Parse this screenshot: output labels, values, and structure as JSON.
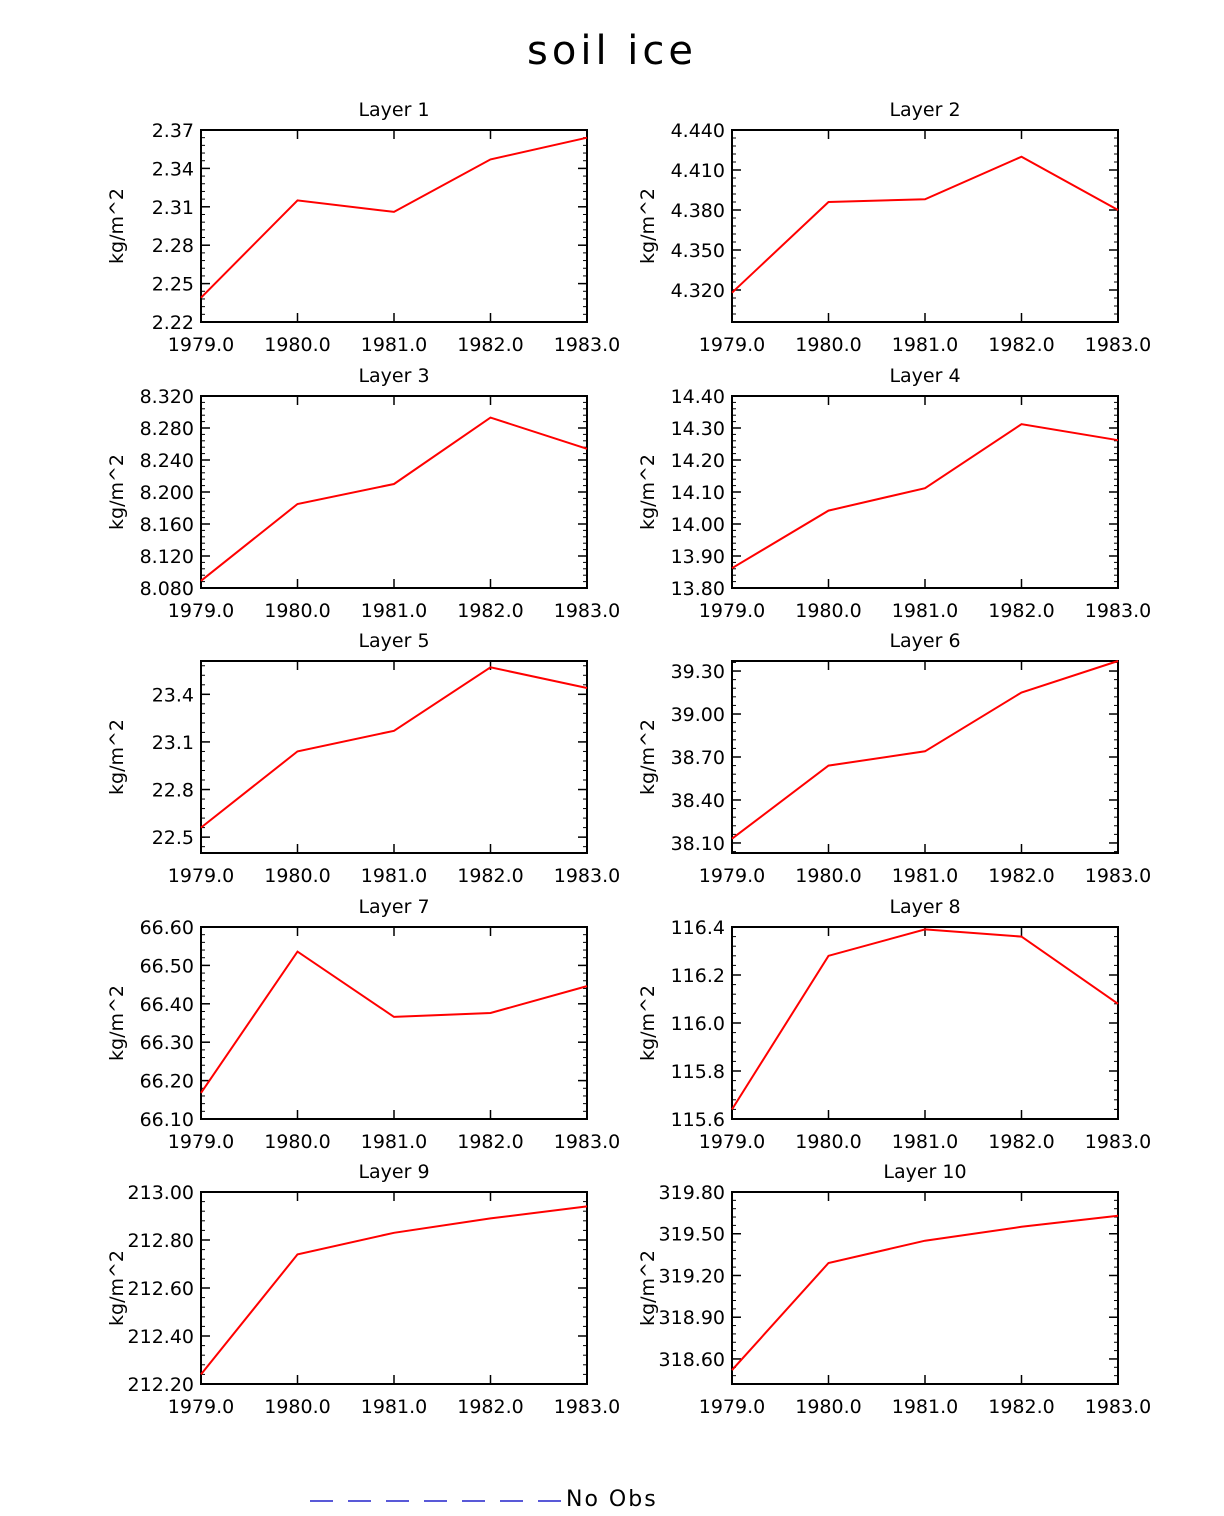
{
  "page_title": "soil ice",
  "legend": {
    "label": "No Obs",
    "line_color": "#2222cc"
  },
  "colors": {
    "series": "#ff0000",
    "axis": "#000000"
  },
  "chart_data": [
    {
      "type": "line",
      "title": "Layer 1",
      "ylabel": "kg/m^2",
      "xlabel": "",
      "x": [
        1979,
        1980,
        1981,
        1982,
        1983
      ],
      "xticklabels": [
        "1979.0",
        "1980.0",
        "1981.0",
        "1982.0",
        "1983.0"
      ],
      "values": [
        2.239,
        2.315,
        2.306,
        2.347,
        2.364
      ],
      "ylim": [
        2.22,
        2.37
      ],
      "yticks": [
        2.22,
        2.25,
        2.28,
        2.31,
        2.34,
        2.37
      ],
      "yticklabels": [
        "2.22",
        "2.25",
        "2.28",
        "2.31",
        "2.34",
        "2.37"
      ]
    },
    {
      "type": "line",
      "title": "Layer 2",
      "ylabel": "kg/m^2",
      "xlabel": "",
      "x": [
        1979,
        1980,
        1981,
        1982,
        1983
      ],
      "xticklabels": [
        "1979.0",
        "1980.0",
        "1981.0",
        "1982.0",
        "1983.0"
      ],
      "values": [
        4.318,
        4.386,
        4.388,
        4.42,
        4.38
      ],
      "ylim": [
        4.296,
        4.44
      ],
      "yticks": [
        4.32,
        4.35,
        4.38,
        4.41,
        4.44
      ],
      "yticklabels": [
        "4.320",
        "4.350",
        "4.380",
        "4.410",
        "4.440"
      ]
    },
    {
      "type": "line",
      "title": "Layer 3",
      "ylabel": "kg/m^2",
      "xlabel": "",
      "x": [
        1979,
        1980,
        1981,
        1982,
        1983
      ],
      "xticklabels": [
        "1979.0",
        "1980.0",
        "1981.0",
        "1982.0",
        "1983.0"
      ],
      "values": [
        8.089,
        8.185,
        8.21,
        8.293,
        8.254
      ],
      "ylim": [
        8.08,
        8.32
      ],
      "yticks": [
        8.08,
        8.12,
        8.16,
        8.2,
        8.24,
        8.28,
        8.32
      ],
      "yticklabels": [
        "8.080",
        "8.120",
        "8.160",
        "8.200",
        "8.240",
        "8.280",
        "8.320"
      ]
    },
    {
      "type": "line",
      "title": "Layer 4",
      "ylabel": "kg/m^2",
      "xlabel": "",
      "x": [
        1979,
        1980,
        1981,
        1982,
        1983
      ],
      "xticklabels": [
        "1979.0",
        "1980.0",
        "1981.0",
        "1982.0",
        "1983.0"
      ],
      "values": [
        13.862,
        14.042,
        14.112,
        14.312,
        14.262
      ],
      "ylim": [
        13.8,
        14.4
      ],
      "yticks": [
        13.8,
        13.9,
        14.0,
        14.1,
        14.2,
        14.3,
        14.4
      ],
      "yticklabels": [
        "13.80",
        "13.90",
        "14.00",
        "14.10",
        "14.20",
        "14.30",
        "14.40"
      ]
    },
    {
      "type": "line",
      "title": "Layer 5",
      "ylabel": "kg/m^2",
      "xlabel": "",
      "x": [
        1979,
        1980,
        1981,
        1982,
        1983
      ],
      "xticklabels": [
        "1979.0",
        "1980.0",
        "1981.0",
        "1982.0",
        "1983.0"
      ],
      "values": [
        22.56,
        23.04,
        23.17,
        23.57,
        23.44
      ],
      "ylim": [
        22.4,
        23.61
      ],
      "yticks": [
        22.5,
        22.8,
        23.1,
        23.4
      ],
      "yticklabels": [
        "22.5",
        "22.8",
        "23.1",
        "23.4"
      ]
    },
    {
      "type": "line",
      "title": "Layer 6",
      "ylabel": "kg/m^2",
      "xlabel": "",
      "x": [
        1979,
        1980,
        1981,
        1982,
        1983
      ],
      "xticklabels": [
        "1979.0",
        "1980.0",
        "1981.0",
        "1982.0",
        "1983.0"
      ],
      "values": [
        38.13,
        38.64,
        38.74,
        39.15,
        39.37
      ],
      "ylim": [
        38.03,
        39.37
      ],
      "yticks": [
        38.1,
        38.4,
        38.7,
        39.0,
        39.3
      ],
      "yticklabels": [
        "38.10",
        "38.40",
        "38.70",
        "39.00",
        "39.30"
      ]
    },
    {
      "type": "line",
      "title": "Layer 7",
      "ylabel": "kg/m^2",
      "xlabel": "",
      "x": [
        1979,
        1980,
        1981,
        1982,
        1983
      ],
      "xticklabels": [
        "1979.0",
        "1980.0",
        "1981.0",
        "1982.0",
        "1983.0"
      ],
      "values": [
        66.168,
        66.536,
        66.366,
        66.376,
        66.446
      ],
      "ylim": [
        66.1,
        66.6
      ],
      "yticks": [
        66.1,
        66.2,
        66.3,
        66.4,
        66.5,
        66.6
      ],
      "yticklabels": [
        "66.10",
        "66.20",
        "66.30",
        "66.40",
        "66.50",
        "66.60"
      ]
    },
    {
      "type": "line",
      "title": "Layer 8",
      "ylabel": "kg/m^2",
      "xlabel": "",
      "x": [
        1979,
        1980,
        1981,
        1982,
        1983
      ],
      "xticklabels": [
        "1979.0",
        "1980.0",
        "1981.0",
        "1982.0",
        "1983.0"
      ],
      "values": [
        115.64,
        116.28,
        116.39,
        116.36,
        116.08
      ],
      "ylim": [
        115.6,
        116.4
      ],
      "yticks": [
        115.6,
        115.8,
        116.0,
        116.2,
        116.4
      ],
      "yticklabels": [
        "115.6",
        "115.8",
        "116.0",
        "116.2",
        "116.4"
      ]
    },
    {
      "type": "line",
      "title": "Layer 9",
      "ylabel": "kg/m^2",
      "xlabel": "",
      "x": [
        1979,
        1980,
        1981,
        1982,
        1983
      ],
      "xticklabels": [
        "1979.0",
        "1980.0",
        "1981.0",
        "1982.0",
        "1983.0"
      ],
      "values": [
        212.24,
        212.74,
        212.83,
        212.89,
        212.94
      ],
      "ylim": [
        212.2,
        213.0
      ],
      "yticks": [
        212.2,
        212.4,
        212.6,
        212.8,
        213.0
      ],
      "yticklabels": [
        "212.20",
        "212.40",
        "212.60",
        "212.80",
        "213.00"
      ]
    },
    {
      "type": "line",
      "title": "Layer 10",
      "ylabel": "kg/m^2",
      "xlabel": "",
      "x": [
        1979,
        1980,
        1981,
        1982,
        1983
      ],
      "xticklabels": [
        "1979.0",
        "1980.0",
        "1981.0",
        "1982.0",
        "1983.0"
      ],
      "values": [
        318.52,
        319.29,
        319.45,
        319.55,
        319.63
      ],
      "ylim": [
        318.42,
        319.8
      ],
      "yticks": [
        318.6,
        318.9,
        319.2,
        319.5,
        319.8
      ],
      "yticklabels": [
        "318.60",
        "318.90",
        "319.20",
        "319.50",
        "319.80"
      ]
    }
  ]
}
